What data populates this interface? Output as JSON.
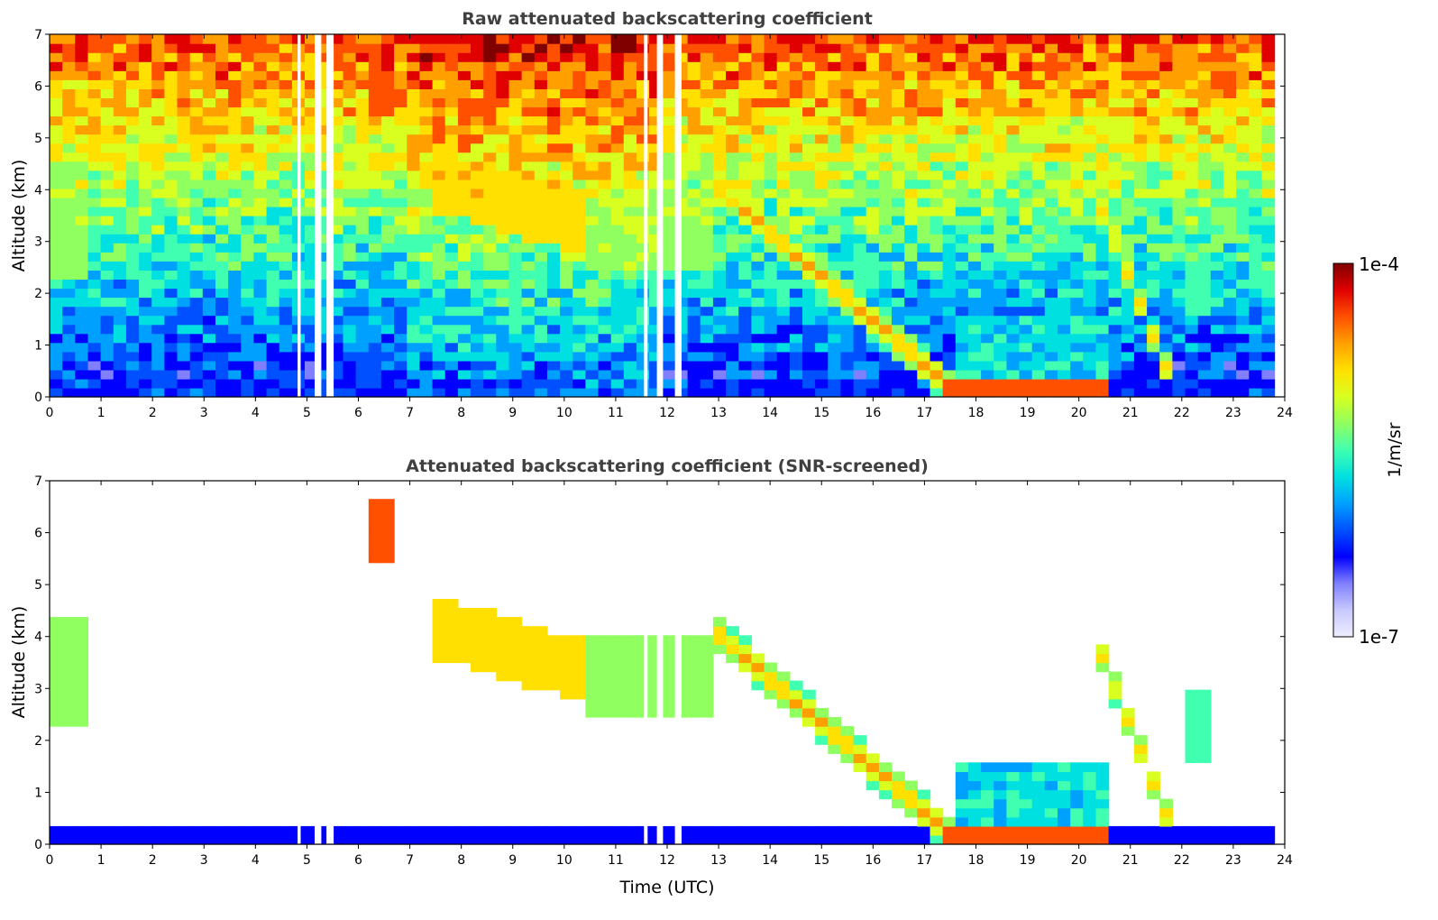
{
  "chart_data": [
    {
      "type": "heatmap",
      "title": "Raw attenuated backscattering coefficient",
      "xlabel": "",
      "ylabel": "Altitude (km)",
      "xlim": [
        0,
        24
      ],
      "ylim": [
        0,
        7
      ],
      "xticks": [
        "0",
        "1",
        "2",
        "3",
        "4",
        "5",
        "6",
        "7",
        "8",
        "9",
        "10",
        "11",
        "12",
        "13",
        "14",
        "15",
        "16",
        "17",
        "18",
        "19",
        "20",
        "21",
        "22",
        "23",
        "24"
      ],
      "yticks": [
        "0",
        "1",
        "2",
        "3",
        "4",
        "5",
        "6",
        "7"
      ],
      "data_end_hour": 23.8,
      "data_gaps_hours": [
        [
          4.82,
          4.88
        ],
        [
          5.15,
          5.28
        ],
        [
          5.38,
          5.52
        ],
        [
          11.55,
          11.62
        ],
        [
          11.8,
          11.92
        ],
        [
          12.15,
          12.28
        ]
      ],
      "features": [
        {
          "name": "boundary-layer",
          "x": [
            0,
            23.8
          ],
          "y": [
            0,
            0.4
          ],
          "level": "low"
        },
        {
          "name": "cloud-A",
          "x": [
            0.05,
            0.7
          ],
          "y": [
            2.2,
            4.3
          ],
          "level": "mid"
        },
        {
          "name": "cloud-B",
          "x": [
            6.2,
            6.7
          ],
          "y": [
            5.4,
            6.6
          ],
          "level": "high"
        },
        {
          "name": "cloud-C",
          "x": [
            7.5,
            10.5
          ],
          "y": [
            2.8,
            4.8
          ],
          "level": "high"
        },
        {
          "name": "layer-descending",
          "x": [
            12.8,
            17.5
          ],
          "y": [
            0.2,
            4.3
          ],
          "level": "high"
        },
        {
          "name": "layer-low",
          "x": [
            17.5,
            20.5
          ],
          "y": [
            0.1,
            1.6
          ],
          "level": "high"
        },
        {
          "name": "layer-descending-2",
          "x": [
            20.3,
            22.0
          ],
          "y": [
            0.1,
            4.0
          ],
          "level": "high"
        }
      ]
    },
    {
      "type": "heatmap",
      "title": "Attenuated backscattering coefficient (SNR-screened)",
      "xlabel": "Time (UTC)",
      "ylabel": "Altitude (km)",
      "xlim": [
        0,
        24
      ],
      "ylim": [
        0,
        7
      ],
      "xticks": [
        "0",
        "1",
        "2",
        "3",
        "4",
        "5",
        "6",
        "7",
        "8",
        "9",
        "10",
        "11",
        "12",
        "13",
        "14",
        "15",
        "16",
        "17",
        "18",
        "19",
        "20",
        "21",
        "22",
        "23",
        "24"
      ],
      "yticks": [
        "0",
        "1",
        "2",
        "3",
        "4",
        "5",
        "6",
        "7"
      ],
      "data_end_hour": 23.8,
      "screened": true
    }
  ],
  "colorbar": {
    "label": "1/m/sr",
    "max_label": "1e-4",
    "min_label": "1e-7",
    "colors": [
      "#eeeeff",
      "#c8c8ff",
      "#8080ff",
      "#0000ff",
      "#0050ff",
      "#00a0ff",
      "#00e0e0",
      "#40ffb0",
      "#90ff60",
      "#d8ff20",
      "#ffe000",
      "#ffa000",
      "#ff5000",
      "#e00000",
      "#800000"
    ]
  }
}
